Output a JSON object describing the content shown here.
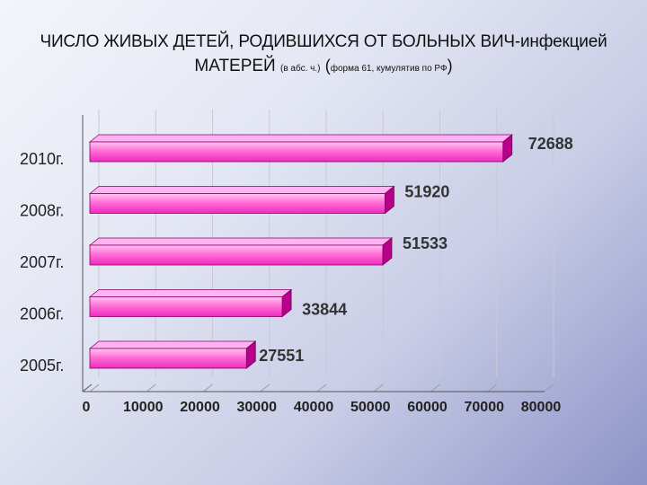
{
  "title": {
    "line1_main": "ЧИСЛО ЖИВЫХ ДЕТЕЙ, РОДИВШИХСЯ ОТ БОЛЬНЫХ ВИЧ-",
    "line1_tail": "инфекцией",
    "line2_main": "МАТЕРЕЙ",
    "line2_units": "(в абс. ч.)",
    "line2_open": "(",
    "line2_note": "форма 61, кумулятив по РФ",
    "line2_close": ")"
  },
  "colors": {
    "bar_light": "#ffb0ef",
    "bar_mid": "#ff44c8",
    "bar_dark": "#b8008a",
    "grid": "#c9c9d6",
    "axis": "#555555"
  },
  "chart_data": {
    "type": "bar",
    "orientation": "horizontal",
    "categories": [
      "2010г.",
      "2008г.",
      "2007г.",
      "2006г.",
      "2005г."
    ],
    "values": [
      72688,
      51920,
      51533,
      33844,
      27551
    ],
    "value_labels": [
      "72688",
      "51920",
      "51533",
      "33844",
      "27551"
    ],
    "xlim": [
      0,
      80000
    ],
    "xticks": [
      0,
      10000,
      20000,
      30000,
      40000,
      50000,
      60000,
      70000,
      80000
    ],
    "xtick_labels": [
      "0",
      "10000",
      "20000",
      "30000",
      "40000",
      "50000",
      "60000",
      "70000",
      "80000"
    ],
    "grid": "vertical",
    "legend": "none"
  }
}
